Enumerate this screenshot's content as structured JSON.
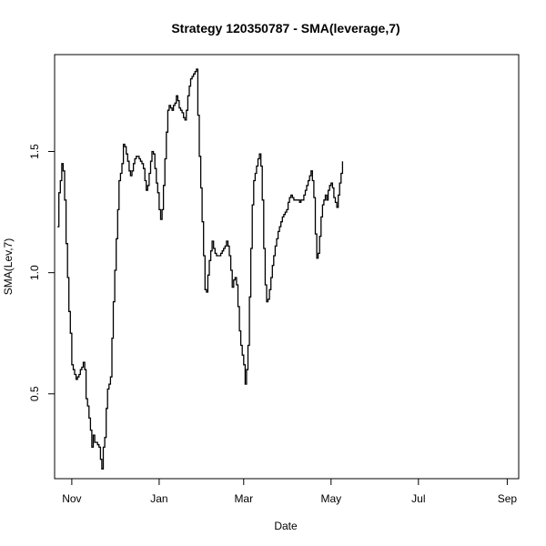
{
  "chart_data": {
    "type": "line",
    "title": "Strategy 120350787 - SMA(leverage,7)",
    "xlabel": "Date",
    "ylabel": "SMA(Lev,7)",
    "grid": false,
    "xlim": [
      -12,
      312
    ],
    "ylim": [
      0.15,
      1.9
    ],
    "x_ticks": [
      {
        "pos": 0,
        "label": "Nov"
      },
      {
        "pos": 61,
        "label": "Jan"
      },
      {
        "pos": 120,
        "label": "Mar"
      },
      {
        "pos": 181,
        "label": "May"
      },
      {
        "pos": 242,
        "label": "Jul"
      },
      {
        "pos": 304,
        "label": "Sep"
      }
    ],
    "y_ticks": [
      {
        "pos": 0.5,
        "label": "0.5"
      },
      {
        "pos": 1.0,
        "label": "1.0"
      },
      {
        "pos": 1.5,
        "label": "1.5"
      }
    ],
    "series": [
      {
        "color": "#000000",
        "points": [
          [
            -10,
            1.19
          ],
          [
            -9,
            1.33
          ],
          [
            -8,
            1.38
          ],
          [
            -7,
            1.45
          ],
          [
            -6,
            1.42
          ],
          [
            -5,
            1.3
          ],
          [
            -4,
            1.12
          ],
          [
            -3,
            0.98
          ],
          [
            -2,
            0.84
          ],
          [
            -1,
            0.75
          ],
          [
            0,
            0.62
          ],
          [
            1,
            0.6
          ],
          [
            2,
            0.58
          ],
          [
            3,
            0.56
          ],
          [
            4,
            0.57
          ],
          [
            5,
            0.58
          ],
          [
            6,
            0.6
          ],
          [
            7,
            0.61
          ],
          [
            8,
            0.63
          ],
          [
            9,
            0.6
          ],
          [
            10,
            0.48
          ],
          [
            11,
            0.45
          ],
          [
            12,
            0.4
          ],
          [
            13,
            0.35
          ],
          [
            14,
            0.28
          ],
          [
            15,
            0.33
          ],
          [
            16,
            0.3
          ],
          [
            18,
            0.29
          ],
          [
            19,
            0.28
          ],
          [
            20,
            0.23
          ],
          [
            21,
            0.19
          ],
          [
            22,
            0.28
          ],
          [
            23,
            0.32
          ],
          [
            24,
            0.44
          ],
          [
            25,
            0.52
          ],
          [
            26,
            0.54
          ],
          [
            27,
            0.57
          ],
          [
            28,
            0.73
          ],
          [
            29,
            0.88
          ],
          [
            30,
            1.01
          ],
          [
            31,
            1.14
          ],
          [
            32,
            1.26
          ],
          [
            33,
            1.38
          ],
          [
            34,
            1.41
          ],
          [
            35,
            1.45
          ],
          [
            36,
            1.53
          ],
          [
            37,
            1.52
          ],
          [
            38,
            1.49
          ],
          [
            39,
            1.46
          ],
          [
            40,
            1.42
          ],
          [
            41,
            1.4
          ],
          [
            42,
            1.42
          ],
          [
            43,
            1.45
          ],
          [
            44,
            1.47
          ],
          [
            45,
            1.48
          ],
          [
            46,
            1.48
          ],
          [
            47,
            1.47
          ],
          [
            48,
            1.46
          ],
          [
            49,
            1.45
          ],
          [
            50,
            1.43
          ],
          [
            51,
            1.38
          ],
          [
            52,
            1.34
          ],
          [
            53,
            1.36
          ],
          [
            54,
            1.41
          ],
          [
            55,
            1.46
          ],
          [
            56,
            1.5
          ],
          [
            57,
            1.49
          ],
          [
            58,
            1.43
          ],
          [
            59,
            1.37
          ],
          [
            60,
            1.33
          ],
          [
            61,
            1.26
          ],
          [
            62,
            1.22
          ],
          [
            63,
            1.26
          ],
          [
            64,
            1.36
          ],
          [
            65,
            1.47
          ],
          [
            66,
            1.58
          ],
          [
            67,
            1.67
          ],
          [
            68,
            1.69
          ],
          [
            69,
            1.68
          ],
          [
            70,
            1.67
          ],
          [
            71,
            1.69
          ],
          [
            72,
            1.7
          ],
          [
            73,
            1.73
          ],
          [
            74,
            1.71
          ],
          [
            75,
            1.68
          ],
          [
            76,
            1.67
          ],
          [
            77,
            1.66
          ],
          [
            78,
            1.64
          ],
          [
            79,
            1.63
          ],
          [
            80,
            1.67
          ],
          [
            81,
            1.73
          ],
          [
            82,
            1.77
          ],
          [
            83,
            1.8
          ],
          [
            84,
            1.81
          ],
          [
            85,
            1.82
          ],
          [
            86,
            1.83
          ],
          [
            87,
            1.84
          ],
          [
            88,
            1.65
          ],
          [
            89,
            1.48
          ],
          [
            90,
            1.35
          ],
          [
            91,
            1.21
          ],
          [
            92,
            1.07
          ],
          [
            93,
            0.93
          ],
          [
            94,
            0.92
          ],
          [
            95,
            0.99
          ],
          [
            96,
            1.05
          ],
          [
            97,
            1.09
          ],
          [
            98,
            1.13
          ],
          [
            99,
            1.1
          ],
          [
            100,
            1.08
          ],
          [
            101,
            1.07
          ],
          [
            103,
            1.07
          ],
          [
            104,
            1.08
          ],
          [
            105,
            1.09
          ],
          [
            106,
            1.1
          ],
          [
            107,
            1.11
          ],
          [
            108,
            1.13
          ],
          [
            109,
            1.11
          ],
          [
            110,
            1.07
          ],
          [
            111,
            1.01
          ],
          [
            112,
            0.94
          ],
          [
            113,
            0.97
          ],
          [
            114,
            0.98
          ],
          [
            115,
            0.95
          ],
          [
            116,
            0.86
          ],
          [
            117,
            0.76
          ],
          [
            118,
            0.7
          ],
          [
            119,
            0.66
          ],
          [
            120,
            0.62
          ],
          [
            121,
            0.54
          ],
          [
            122,
            0.6
          ],
          [
            123,
            0.7
          ],
          [
            124,
            0.9
          ],
          [
            125,
            1.1
          ],
          [
            126,
            1.28
          ],
          [
            127,
            1.38
          ],
          [
            128,
            1.41
          ],
          [
            129,
            1.44
          ],
          [
            130,
            1.47
          ],
          [
            131,
            1.49
          ],
          [
            132,
            1.44
          ],
          [
            133,
            1.3
          ],
          [
            134,
            1.1
          ],
          [
            135,
            0.95
          ],
          [
            136,
            0.88
          ],
          [
            137,
            0.89
          ],
          [
            138,
            0.93
          ],
          [
            139,
            0.98
          ],
          [
            140,
            1.03
          ],
          [
            141,
            1.07
          ],
          [
            142,
            1.11
          ],
          [
            143,
            1.14
          ],
          [
            144,
            1.17
          ],
          [
            145,
            1.19
          ],
          [
            146,
            1.21
          ],
          [
            147,
            1.23
          ],
          [
            148,
            1.24
          ],
          [
            149,
            1.25
          ],
          [
            150,
            1.26
          ],
          [
            151,
            1.29
          ],
          [
            152,
            1.31
          ],
          [
            153,
            1.32
          ],
          [
            154,
            1.31
          ],
          [
            155,
            1.3
          ],
          [
            157,
            1.3
          ],
          [
            159,
            1.29
          ],
          [
            160,
            1.3
          ],
          [
            161,
            1.3
          ],
          [
            162,
            1.32
          ],
          [
            163,
            1.34
          ],
          [
            164,
            1.36
          ],
          [
            165,
            1.38
          ],
          [
            166,
            1.4
          ],
          [
            167,
            1.42
          ],
          [
            168,
            1.38
          ],
          [
            169,
            1.31
          ],
          [
            170,
            1.16
          ],
          [
            171,
            1.06
          ],
          [
            172,
            1.08
          ],
          [
            173,
            1.15
          ],
          [
            174,
            1.23
          ],
          [
            175,
            1.28
          ],
          [
            176,
            1.3
          ],
          [
            177,
            1.32
          ],
          [
            178,
            1.3
          ],
          [
            179,
            1.34
          ],
          [
            180,
            1.36
          ],
          [
            181,
            1.37
          ],
          [
            182,
            1.35
          ],
          [
            183,
            1.31
          ],
          [
            184,
            1.29
          ],
          [
            185,
            1.27
          ],
          [
            186,
            1.32
          ],
          [
            187,
            1.37
          ],
          [
            188,
            1.41
          ],
          [
            189,
            1.46
          ]
        ]
      }
    ]
  }
}
